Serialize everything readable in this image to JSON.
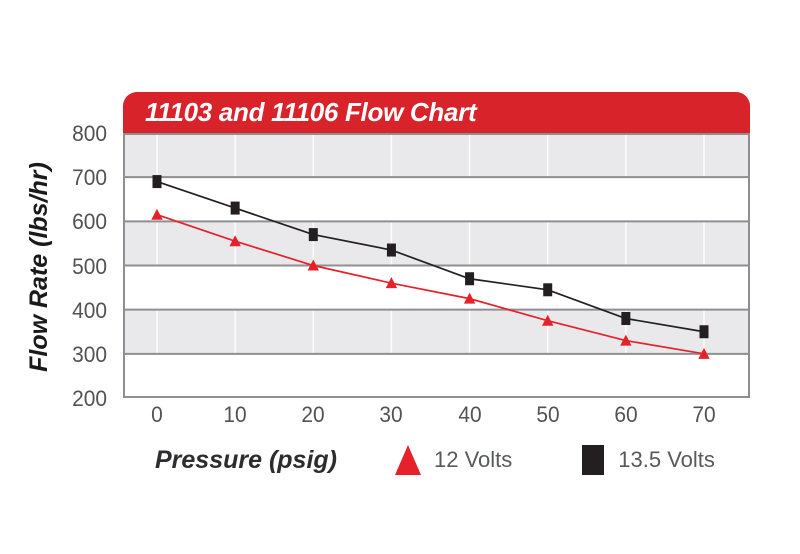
{
  "header": {
    "title": "11103 and 11106 Flow Chart"
  },
  "chart_data": {
    "type": "line",
    "title": "11103 and 11106 Flow Chart",
    "xlabel": "Pressure (psig)",
    "ylabel": "Flow Rate (lbs/hr)",
    "x": [
      0,
      10,
      20,
      30,
      40,
      50,
      60,
      70
    ],
    "series": [
      {
        "name": "12 Volts",
        "marker": "triangle",
        "color": "#e62129",
        "values": [
          615,
          555,
          500,
          460,
          425,
          375,
          330,
          300
        ]
      },
      {
        "name": "13.5 Volts",
        "marker": "square",
        "color": "#231f20",
        "values": [
          690,
          630,
          570,
          535,
          470,
          445,
          380,
          350
        ]
      }
    ],
    "ylim": [
      200,
      800
    ],
    "ytick_step": 100,
    "grid": true,
    "legend_position": "bottom",
    "band_colors": [
      "#e9e9ec",
      "#ffffff"
    ]
  },
  "colors": {
    "header_red": "#d8232a",
    "series_red": "#e62129",
    "series_black": "#231f20",
    "band_gray": "#e9e9ec",
    "hgrid": "#8f8f92",
    "vgrid": "#ffffff",
    "border": "#8f8f92",
    "tick_text": "#515254",
    "legend_text": "#58595b"
  }
}
